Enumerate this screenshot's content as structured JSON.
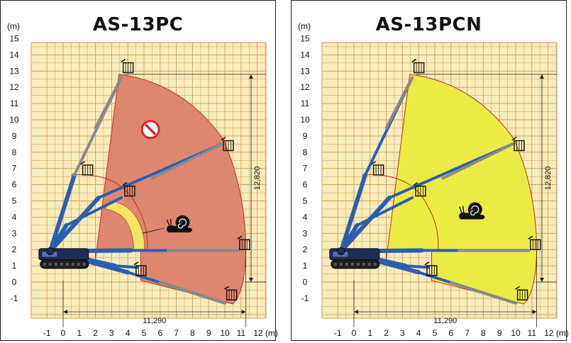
{
  "colors": {
    "grid_bg": "#f6ecbc",
    "grid_line": "#d99a52",
    "zone_restricted": "#dd8670",
    "zone_slow": "#f2e566",
    "zone_open": "#ecea45",
    "envelope_line": "#cc2b1e",
    "boom_blue": "#2a5fb0",
    "boom_gray": "#8a8a8a"
  },
  "panels": [
    {
      "title": "AS-13PC",
      "unit_label": "(m)",
      "variant": "restricted",
      "y_ticks": [
        "15",
        "14",
        "13",
        "12",
        "11",
        "10",
        "9",
        "8",
        "7",
        "6",
        "5",
        "4",
        "3",
        "2",
        "1",
        "0",
        "-1"
      ],
      "x_ticks": [
        "-1",
        "0",
        "1",
        "2",
        "3",
        "4",
        "5",
        "6",
        "7",
        "8",
        "9",
        "10",
        "11",
        "12 (m)"
      ],
      "height_dimension": "12,820",
      "reach_dimension": "11,290",
      "icons": [
        "no-entry-icon",
        "snail-icon"
      ]
    },
    {
      "title": "AS-13PCN",
      "unit_label": "(m)",
      "variant": "open",
      "y_ticks": [
        "15",
        "14",
        "13",
        "12",
        "11",
        "10",
        "9",
        "8",
        "7",
        "6",
        "5",
        "4",
        "3",
        "2",
        "1",
        "0",
        "-1"
      ],
      "x_ticks": [
        "-1",
        "0",
        "1",
        "2",
        "3",
        "4",
        "5",
        "6",
        "7",
        "8",
        "9",
        "10",
        "11",
        "12 (m)"
      ],
      "height_dimension": "12,820",
      "reach_dimension": "11,290",
      "icons": [
        "snail-icon"
      ]
    }
  ]
}
